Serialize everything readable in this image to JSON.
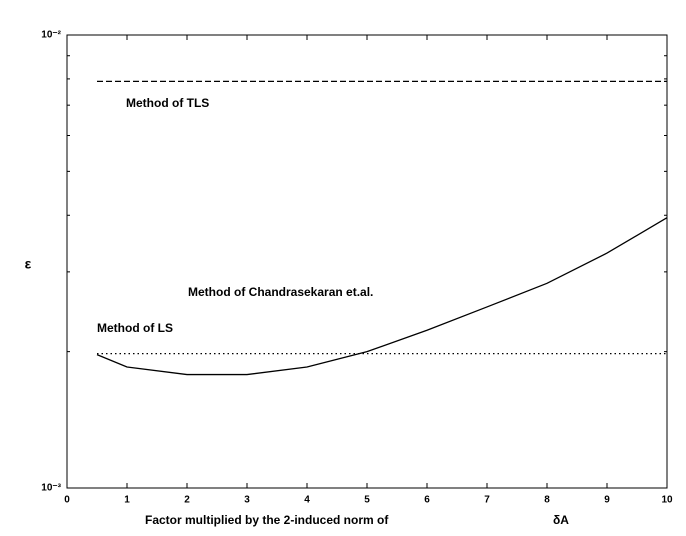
{
  "chart_data": {
    "type": "line",
    "ylabel": "ε",
    "xlabel": [
      "Factor multiplied by the 2-induced norm of",
      "δA"
    ],
    "x": [
      0.5,
      1,
      2,
      3,
      4,
      5,
      6,
      7,
      8,
      9,
      10
    ],
    "series": [
      {
        "name": "Method of TLS",
        "color": "#000000",
        "style": "dashed",
        "values": [
          0.0079,
          0.0079,
          0.0079,
          0.0079,
          0.0079,
          0.0079,
          0.0079,
          0.0079,
          0.0079,
          0.0079,
          0.0079
        ]
      },
      {
        "name": "Method of Chandrasekaran et.al.",
        "color": "#000000",
        "style": "solid",
        "values": [
          0.00197,
          0.00185,
          0.00178,
          0.00178,
          0.00185,
          0.002,
          0.00223,
          0.00251,
          0.00283,
          0.0033,
          0.00395
        ]
      },
      {
        "name": "Method of LS",
        "color": "#000000",
        "style": "dotted",
        "values": [
          0.00198,
          0.00198,
          0.00198,
          0.00198,
          0.00198,
          0.00198,
          0.00198,
          0.00198,
          0.00198,
          0.00198,
          0.00198
        ]
      }
    ],
    "xlim": [
      0,
      10
    ],
    "xticks": [
      0,
      1,
      2,
      3,
      4,
      5,
      6,
      7,
      8,
      9,
      10
    ],
    "ylim": [
      0.001,
      0.01
    ],
    "yscale": "log",
    "yticks": [
      {
        "value": 0.001,
        "label": "10⁻³"
      },
      {
        "value": 0.01,
        "label": "10⁻²"
      }
    ],
    "yminorticks": [
      0.002,
      0.003,
      0.004,
      0.005,
      0.006,
      0.007,
      0.008,
      0.009
    ],
    "grid": false
  }
}
